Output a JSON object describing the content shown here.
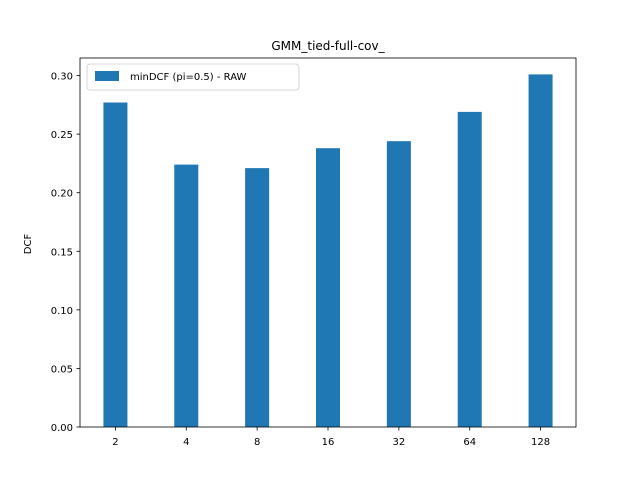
{
  "chart_data": {
    "type": "bar",
    "title": "GMM_tied-full-cov_",
    "xlabel": "",
    "ylabel": "DCF",
    "categories": [
      "2",
      "4",
      "8",
      "16",
      "32",
      "64",
      "128"
    ],
    "series": [
      {
        "name": "minDCF (pi=0.5) - RAW",
        "color": "#1f77b4",
        "values": [
          0.277,
          0.224,
          0.221,
          0.238,
          0.244,
          0.269,
          0.301
        ]
      }
    ],
    "ylim": [
      0,
      0.315
    ],
    "yticks": [
      "0.00",
      "0.05",
      "0.10",
      "0.15",
      "0.20",
      "0.25",
      "0.30"
    ],
    "ytick_values": [
      0.0,
      0.05,
      0.1,
      0.15,
      0.2,
      0.25,
      0.3
    ],
    "legend": "top-left",
    "grid": false
  }
}
